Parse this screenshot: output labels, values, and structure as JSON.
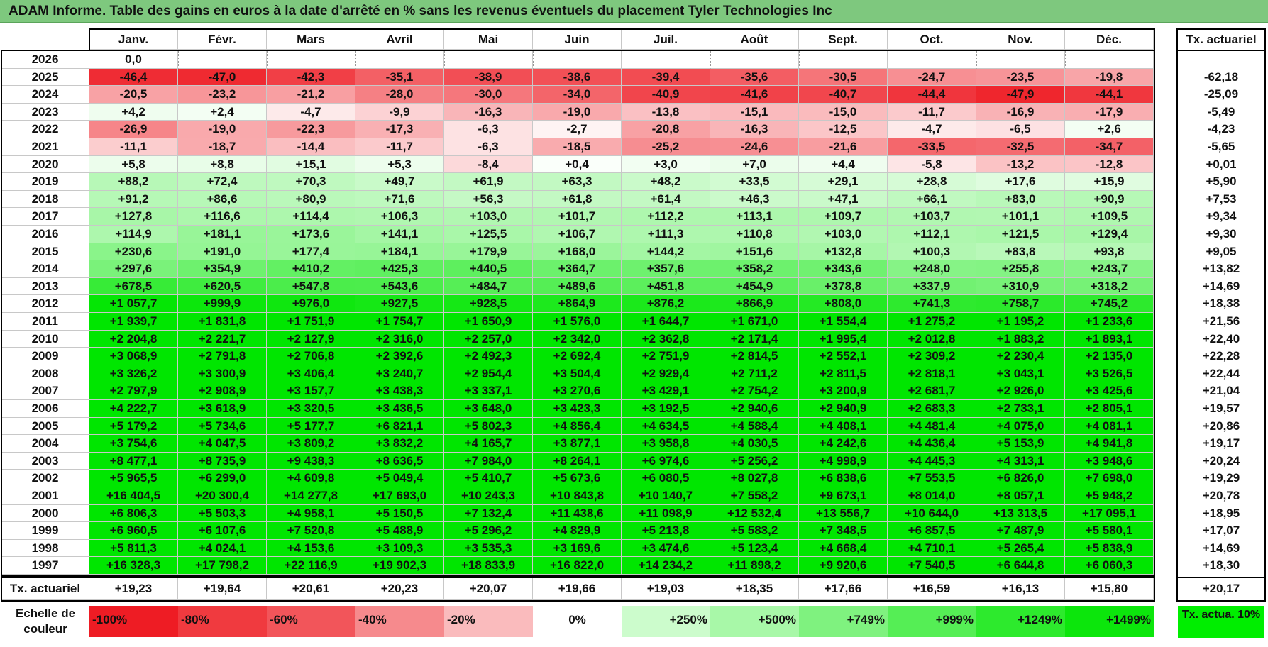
{
  "title": "ADAM Informe. Table des gains en euros à la date d'arrêté en % sans les revenus éventuels du placement Tyler Technologies Inc",
  "months": [
    "Janv.",
    "Févr.",
    "Mars",
    "Avril",
    "Mai",
    "Juin",
    "Juil.",
    "Août",
    "Sept.",
    "Oct.",
    "Nov.",
    "Déc."
  ],
  "rate_header": "Tx. actuariel",
  "rows": [
    {
      "year": "2026",
      "values": [
        "0,0",
        "",
        "",
        "",
        "",
        "",
        "",
        "",
        "",
        "",
        "",
        ""
      ],
      "rate": ""
    },
    {
      "year": "2025",
      "values": [
        "-46,4",
        "-47,0",
        "-42,3",
        "-35,1",
        "-38,9",
        "-38,6",
        "-39,4",
        "-35,6",
        "-30,5",
        "-24,7",
        "-23,5",
        "-19,8"
      ],
      "rate": "-62,18"
    },
    {
      "year": "2024",
      "values": [
        "-20,5",
        "-23,2",
        "-21,2",
        "-28,0",
        "-30,0",
        "-34,0",
        "-40,9",
        "-41,6",
        "-40,7",
        "-44,4",
        "-47,9",
        "-44,1"
      ],
      "rate": "-25,09"
    },
    {
      "year": "2023",
      "values": [
        "+4,2",
        "+2,4",
        "-4,7",
        "-9,9",
        "-16,3",
        "-19,0",
        "-13,8",
        "-15,1",
        "-15,0",
        "-11,7",
        "-16,9",
        "-17,9"
      ],
      "rate": "-5,49"
    },
    {
      "year": "2022",
      "values": [
        "-26,9",
        "-19,0",
        "-22,3",
        "-17,3",
        "-6,3",
        "-2,7",
        "-20,8",
        "-16,3",
        "-12,5",
        "-4,7",
        "-6,5",
        "+2,6"
      ],
      "rate": "-4,23"
    },
    {
      "year": "2021",
      "values": [
        "-11,1",
        "-18,7",
        "-14,4",
        "-11,7",
        "-6,3",
        "-18,5",
        "-25,2",
        "-24,6",
        "-21,6",
        "-33,5",
        "-32,5",
        "-34,7"
      ],
      "rate": "-5,65"
    },
    {
      "year": "2020",
      "values": [
        "+5,8",
        "+8,8",
        "+15,1",
        "+5,3",
        "-8,4",
        "+0,4",
        "+3,0",
        "+7,0",
        "+4,4",
        "-5,8",
        "-13,2",
        "-12,8"
      ],
      "rate": "+0,01"
    },
    {
      "year": "2019",
      "values": [
        "+88,2",
        "+72,4",
        "+70,3",
        "+49,7",
        "+61,9",
        "+63,3",
        "+48,2",
        "+33,5",
        "+29,1",
        "+28,8",
        "+17,6",
        "+15,9"
      ],
      "rate": "+5,90"
    },
    {
      "year": "2018",
      "values": [
        "+91,2",
        "+86,6",
        "+80,9",
        "+71,6",
        "+56,3",
        "+61,8",
        "+61,4",
        "+46,3",
        "+47,1",
        "+66,1",
        "+83,0",
        "+90,9"
      ],
      "rate": "+7,53"
    },
    {
      "year": "2017",
      "values": [
        "+127,8",
        "+116,6",
        "+114,4",
        "+106,3",
        "+103,0",
        "+101,7",
        "+112,2",
        "+113,1",
        "+109,7",
        "+103,7",
        "+101,1",
        "+109,5"
      ],
      "rate": "+9,34"
    },
    {
      "year": "2016",
      "values": [
        "+114,9",
        "+181,1",
        "+173,6",
        "+141,1",
        "+125,5",
        "+106,7",
        "+111,3",
        "+110,8",
        "+103,0",
        "+112,1",
        "+121,5",
        "+129,4"
      ],
      "rate": "+9,30"
    },
    {
      "year": "2015",
      "values": [
        "+230,6",
        "+191,0",
        "+177,4",
        "+184,1",
        "+179,9",
        "+168,0",
        "+144,2",
        "+151,6",
        "+132,8",
        "+100,3",
        "+83,8",
        "+93,8"
      ],
      "rate": "+9,05"
    },
    {
      "year": "2014",
      "values": [
        "+297,6",
        "+354,9",
        "+410,2",
        "+425,3",
        "+440,5",
        "+364,7",
        "+357,6",
        "+358,2",
        "+343,6",
        "+248,0",
        "+255,8",
        "+243,7"
      ],
      "rate": "+13,82"
    },
    {
      "year": "2013",
      "values": [
        "+678,5",
        "+620,5",
        "+547,8",
        "+543,6",
        "+484,7",
        "+489,6",
        "+451,8",
        "+454,9",
        "+378,8",
        "+337,9",
        "+310,9",
        "+318,2"
      ],
      "rate": "+14,69"
    },
    {
      "year": "2012",
      "values": [
        "+1 057,7",
        "+999,9",
        "+976,0",
        "+927,5",
        "+928,5",
        "+864,9",
        "+876,2",
        "+866,9",
        "+808,0",
        "+741,3",
        "+758,7",
        "+745,2"
      ],
      "rate": "+18,38"
    },
    {
      "year": "2011",
      "values": [
        "+1 939,7",
        "+1 831,8",
        "+1 751,9",
        "+1 754,7",
        "+1 650,9",
        "+1 576,0",
        "+1 644,7",
        "+1 671,0",
        "+1 554,4",
        "+1 275,2",
        "+1 195,2",
        "+1 233,6"
      ],
      "rate": "+21,56"
    },
    {
      "year": "2010",
      "values": [
        "+2 204,8",
        "+2 221,7",
        "+2 127,9",
        "+2 316,0",
        "+2 257,0",
        "+2 342,0",
        "+2 362,8",
        "+2 171,4",
        "+1 995,4",
        "+2 012,8",
        "+1 883,2",
        "+1 893,1"
      ],
      "rate": "+22,40"
    },
    {
      "year": "2009",
      "values": [
        "+3 068,9",
        "+2 791,8",
        "+2 706,8",
        "+2 392,6",
        "+2 492,3",
        "+2 692,4",
        "+2 751,9",
        "+2 814,5",
        "+2 552,1",
        "+2 309,2",
        "+2 230,4",
        "+2 135,0"
      ],
      "rate": "+22,28"
    },
    {
      "year": "2008",
      "values": [
        "+3 326,2",
        "+3 300,9",
        "+3 406,4",
        "+3 240,7",
        "+2 954,4",
        "+3 504,4",
        "+2 929,4",
        "+2 711,2",
        "+2 811,5",
        "+2 818,1",
        "+3 043,1",
        "+3 526,5"
      ],
      "rate": "+22,44"
    },
    {
      "year": "2007",
      "values": [
        "+2 797,9",
        "+2 908,9",
        "+3 157,7",
        "+3 438,3",
        "+3 337,1",
        "+3 270,6",
        "+3 429,1",
        "+2 754,2",
        "+3 200,9",
        "+2 681,7",
        "+2 926,0",
        "+3 425,6"
      ],
      "rate": "+21,04"
    },
    {
      "year": "2006",
      "values": [
        "+4 222,7",
        "+3 618,9",
        "+3 320,5",
        "+3 436,5",
        "+3 648,0",
        "+3 423,3",
        "+3 192,5",
        "+2 940,6",
        "+2 940,9",
        "+2 683,3",
        "+2 733,1",
        "+2 805,1"
      ],
      "rate": "+19,57"
    },
    {
      "year": "2005",
      "values": [
        "+5 179,2",
        "+5 734,6",
        "+5 177,7",
        "+6 821,1",
        "+5 802,3",
        "+4 856,4",
        "+4 634,5",
        "+4 588,4",
        "+4 408,1",
        "+4 481,4",
        "+4 075,0",
        "+4 081,1"
      ],
      "rate": "+20,86"
    },
    {
      "year": "2004",
      "values": [
        "+3 754,6",
        "+4 047,5",
        "+3 809,2",
        "+3 832,2",
        "+4 165,7",
        "+3 877,1",
        "+3 958,8",
        "+4 030,5",
        "+4 242,6",
        "+4 436,4",
        "+5 153,9",
        "+4 941,8"
      ],
      "rate": "+19,17"
    },
    {
      "year": "2003",
      "values": [
        "+8 477,1",
        "+8 735,9",
        "+9 438,3",
        "+8 636,5",
        "+7 984,0",
        "+8 264,1",
        "+6 974,6",
        "+5 256,2",
        "+4 998,9",
        "+4 445,3",
        "+4 313,1",
        "+3 948,6"
      ],
      "rate": "+20,24"
    },
    {
      "year": "2002",
      "values": [
        "+5 965,5",
        "+6 299,0",
        "+4 609,8",
        "+5 049,4",
        "+5 410,7",
        "+5 673,6",
        "+6 080,5",
        "+8 027,8",
        "+6 838,6",
        "+7 553,5",
        "+6 826,0",
        "+7 698,0"
      ],
      "rate": "+19,29"
    },
    {
      "year": "2001",
      "values": [
        "+16 404,5",
        "+20 300,4",
        "+14 277,8",
        "+17 693,0",
        "+10 243,3",
        "+10 843,8",
        "+10 140,7",
        "+7 558,2",
        "+9 673,1",
        "+8 014,0",
        "+8 057,1",
        "+5 948,2"
      ],
      "rate": "+20,78"
    },
    {
      "year": "2000",
      "values": [
        "+6 806,3",
        "+5 503,3",
        "+4 958,1",
        "+5 150,5",
        "+7 132,4",
        "+11 438,6",
        "+11 098,9",
        "+12 532,4",
        "+13 556,7",
        "+10 644,0",
        "+13 313,5",
        "+17 095,1"
      ],
      "rate": "+18,95"
    },
    {
      "year": "1999",
      "values": [
        "+6 960,5",
        "+6 107,6",
        "+7 520,8",
        "+5 488,9",
        "+5 296,2",
        "+4 829,9",
        "+5 213,8",
        "+5 583,2",
        "+7 348,5",
        "+6 857,5",
        "+7 487,9",
        "+5 580,1"
      ],
      "rate": "+17,07"
    },
    {
      "year": "1998",
      "values": [
        "+5 811,3",
        "+4 024,1",
        "+4 153,6",
        "+3 109,3",
        "+3 535,3",
        "+3 169,6",
        "+3 474,6",
        "+5 123,4",
        "+4 668,4",
        "+4 710,1",
        "+5 265,4",
        "+5 838,9"
      ],
      "rate": "+14,69"
    },
    {
      "year": "1997",
      "values": [
        "+16 328,3",
        "+17 798,2",
        "+22 116,9",
        "+19 902,3",
        "+18 833,9",
        "+16 822,0",
        "+14 234,2",
        "+11 898,2",
        "+9 920,6",
        "+7 540,5",
        "+6 644,8",
        "+6 060,3"
      ],
      "rate": "+18,30"
    }
  ],
  "totals": {
    "label": "Tx. actuariel",
    "values": [
      "+19,23",
      "+19,64",
      "+20,61",
      "+20,23",
      "+20,07",
      "+19,66",
      "+19,03",
      "+18,35",
      "+17,66",
      "+16,59",
      "+16,13",
      "+15,80"
    ],
    "rate": "+20,17"
  },
  "scale": {
    "label": "Echelle de couleur",
    "items": [
      {
        "text": "-100%",
        "color": "#ee1c24",
        "align": "left"
      },
      {
        "text": "-80%",
        "color": "#f03a3f",
        "align": "left"
      },
      {
        "text": "-60%",
        "color": "#f2555a",
        "align": "left"
      },
      {
        "text": "-40%",
        "color": "#f68a8d",
        "align": "left"
      },
      {
        "text": "-20%",
        "color": "#fabbbd",
        "align": "left"
      },
      {
        "text": "0%",
        "color": "#ffffff",
        "align": "center"
      },
      {
        "text": "+250%",
        "color": "#ccfccc",
        "align": "right"
      },
      {
        "text": "+500%",
        "color": "#a8f8a8",
        "align": "right"
      },
      {
        "text": "+749%",
        "color": "#7ff27f",
        "align": "right"
      },
      {
        "text": "+999%",
        "color": "#55ee55",
        "align": "right"
      },
      {
        "text": "+1249%",
        "color": "#2dea2d",
        "align": "right"
      },
      {
        "text": "+1499%",
        "color": "#0ce60c",
        "align": "right"
      }
    ],
    "rate_legend": "Tx. actua. 10%",
    "rate_legend_color": "#00ee00"
  },
  "colors": {
    "title_bar": "#7ec87e",
    "negative_max": "#ee1c24",
    "positive_max": "#00e600"
  }
}
